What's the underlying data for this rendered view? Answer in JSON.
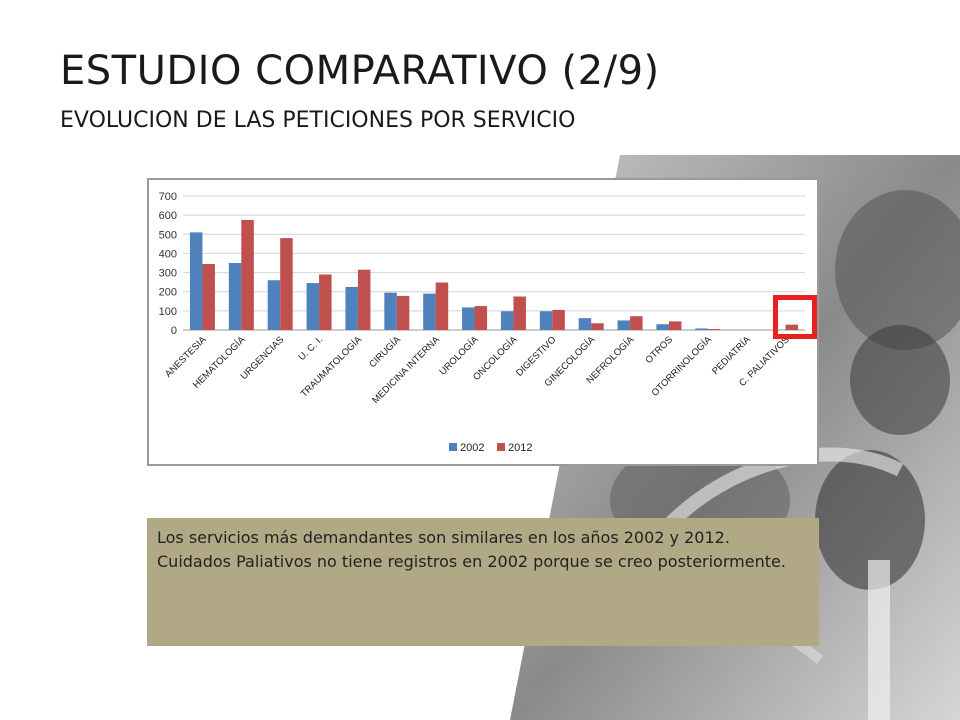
{
  "header": {
    "title": "ESTUDIO COMPARATIVO (2/9)",
    "subtitle": "EVOLUCION DE LAS PETICIONES POR SERVICIO"
  },
  "chart_data": {
    "type": "bar",
    "categories": [
      "ANESTESIA",
      "HEMATOLOGÍA",
      "URGENCIAS",
      "U. C. I.",
      "TRAUMATOLOGÍA",
      "CIRUGÍA",
      "MEDICINA INTERNA",
      "UROLOGÍA",
      "ONCOLOGÍA",
      "DIGESTIVO",
      "GINECOLOGÍA",
      "NEFROLOGÍA",
      "OTROS",
      "OTORRINOLOGÍA",
      "PEDIATRÍA",
      "C. PALIATIVOS"
    ],
    "series": [
      {
        "name": "2002",
        "color": "#4f81bd",
        "values": [
          510,
          350,
          260,
          245,
          225,
          195,
          190,
          118,
          98,
          98,
          62,
          50,
          30,
          8,
          0,
          0
        ]
      },
      {
        "name": "2012",
        "color": "#c0504d",
        "values": [
          345,
          575,
          480,
          290,
          315,
          178,
          248,
          125,
          175,
          105,
          35,
          72,
          45,
          5,
          0,
          28
        ]
      }
    ],
    "yticks": [
      0,
      100,
      200,
      300,
      400,
      500,
      600,
      700
    ],
    "ylim": [
      0,
      700
    ],
    "grid": true,
    "legend": "bottom",
    "title": "",
    "xlabel": "",
    "ylabel": ""
  },
  "note": {
    "line1": "Los servicios más demandantes son similares en los años 2002 y 2012.",
    "line2": "Cuidados Paliativos no tiene registros en 2002 porque se creo posteriormente."
  }
}
